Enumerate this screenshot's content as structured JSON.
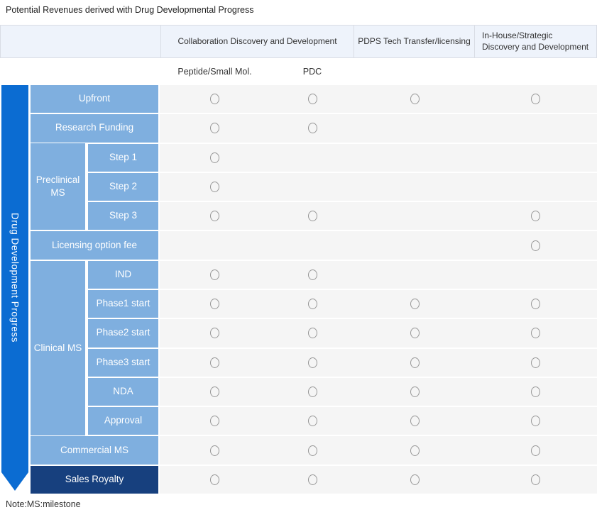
{
  "title": "Potential Revenues derived with Drug Developmental Progress",
  "note": "Note:MS:milestone",
  "arrow_label": "Drug Development Progress",
  "columns": {
    "collaboration": "Collaboration Discovery and Development",
    "pdps": "PDPS Tech Transfer/licensing",
    "inhouse": "In-House/Strategic Discovery and Development",
    "sub": [
      "Peptide/Small Mol.",
      "PDC"
    ]
  },
  "groups": {
    "preclinical": "Preclinical MS",
    "clinical": "Clinical MS"
  },
  "rows": [
    {
      "label": "Upfront",
      "type": "full",
      "marks": [
        1,
        1,
        1,
        1
      ]
    },
    {
      "label": "Research Funding",
      "type": "full",
      "marks": [
        1,
        1,
        0,
        0
      ]
    },
    {
      "label": "Step 1",
      "type": "sub",
      "marks": [
        1,
        0,
        0,
        0
      ]
    },
    {
      "label": "Step 2",
      "type": "sub",
      "marks": [
        1,
        0,
        0,
        0
      ]
    },
    {
      "label": "Step 3",
      "type": "sub",
      "marks": [
        1,
        1,
        0,
        1
      ]
    },
    {
      "label": "Licensing option fee",
      "type": "full",
      "marks": [
        0,
        0,
        0,
        1
      ]
    },
    {
      "label": "IND",
      "type": "sub",
      "marks": [
        1,
        1,
        0,
        0
      ]
    },
    {
      "label": "Phase1 start",
      "type": "sub",
      "marks": [
        1,
        1,
        1,
        1
      ]
    },
    {
      "label": "Phase2 start",
      "type": "sub",
      "marks": [
        1,
        1,
        1,
        1
      ]
    },
    {
      "label": "Phase3 start",
      "type": "sub",
      "marks": [
        1,
        1,
        1,
        1
      ]
    },
    {
      "label": "NDA",
      "type": "sub",
      "marks": [
        1,
        1,
        1,
        1
      ]
    },
    {
      "label": "Approval",
      "type": "sub",
      "marks": [
        1,
        1,
        1,
        1
      ]
    },
    {
      "label": "Commercial MS",
      "type": "full",
      "marks": [
        1,
        1,
        1,
        1
      ]
    },
    {
      "label": "Sales Royalty",
      "type": "full",
      "dark": true,
      "marks": [
        1,
        1,
        1,
        1
      ]
    }
  ],
  "colors": {
    "arrow-blue": "#0b6cd2",
    "label-blue": "#7fafdf",
    "dark-navy": "#17407e",
    "header-bg": "#eef3fb",
    "header-border": "#d9dde5",
    "cell-bg": "#f5f5f5",
    "circle-gray": "#979797"
  }
}
